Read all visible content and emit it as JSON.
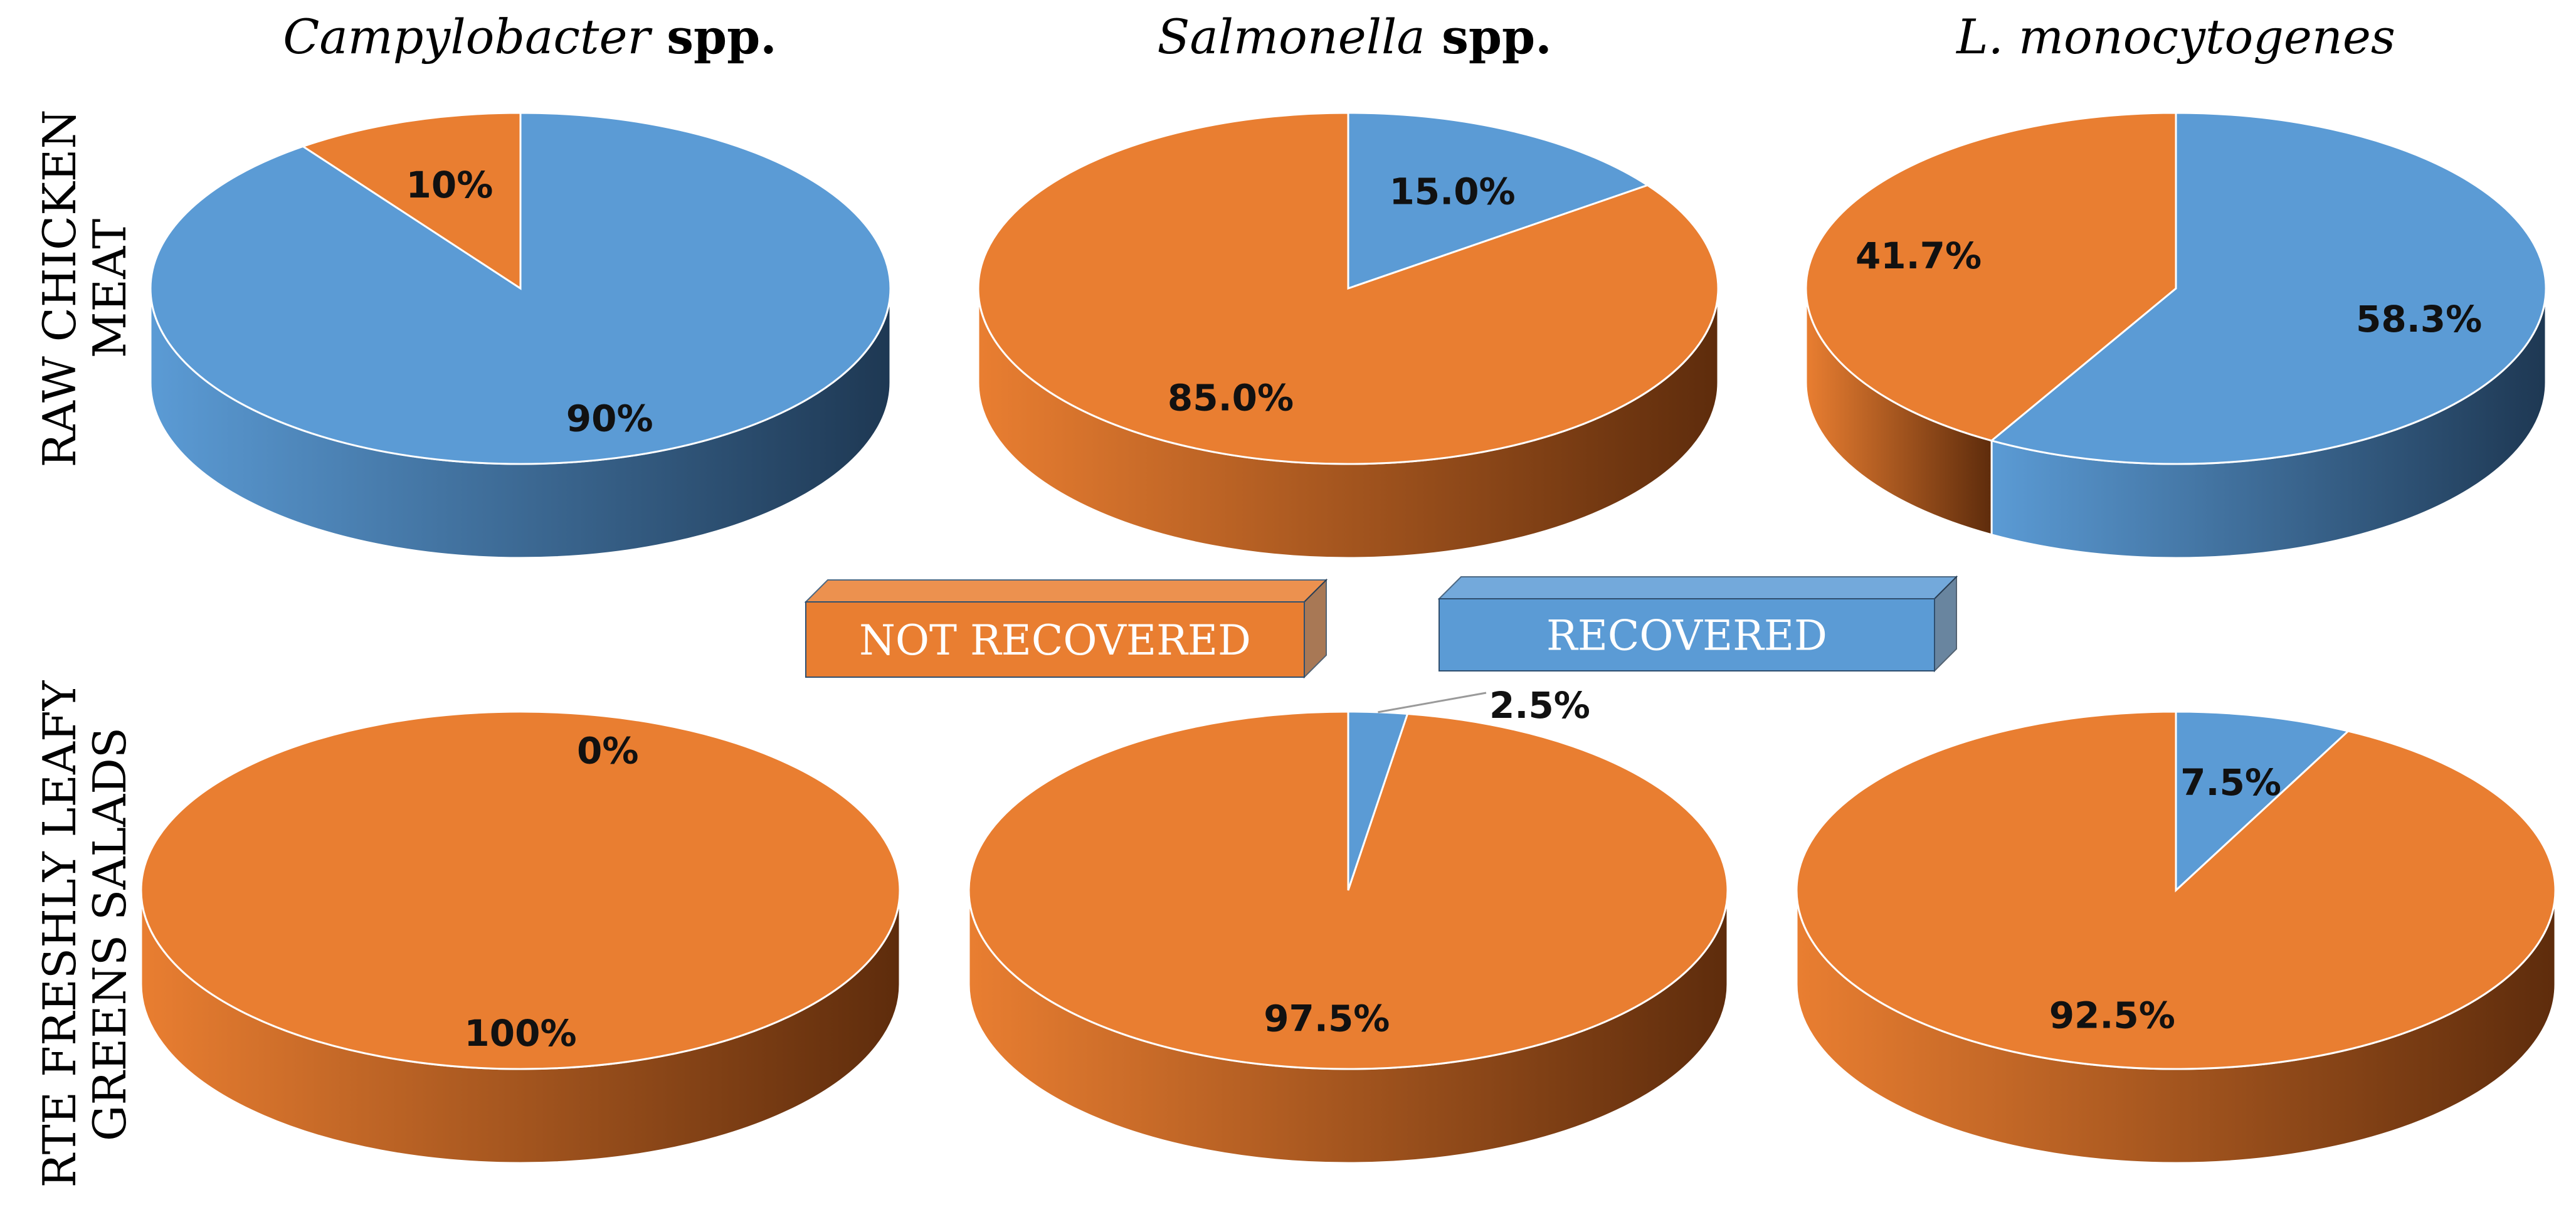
{
  "colors": {
    "not_recovered": "#E97E31",
    "recovered": "#5B9BD5",
    "not_recovered_side_dark": "#5E2C0C",
    "recovered_side_dark": "#1E3853"
  },
  "legend": {
    "not_recovered": "NOT RECOVERED",
    "recovered": "RECOVERED"
  },
  "chart_data": [
    {
      "type": "pie",
      "column_title": {
        "italic": "Campylobacter",
        "plain": " spp."
      },
      "row_label": [
        "RAW CHICKEN",
        "MEAT"
      ],
      "slices": [
        {
          "name": "NOT RECOVERED",
          "value": 10,
          "label": "10%"
        },
        {
          "name": "RECOVERED",
          "value": 90,
          "label": "90%"
        }
      ]
    },
    {
      "type": "pie",
      "column_title": {
        "italic": "Salmonella",
        "plain": " spp."
      },
      "row_label": [
        "RAW CHICKEN",
        "MEAT"
      ],
      "slices": [
        {
          "name": "NOT RECOVERED",
          "value": 85.0,
          "label": "85.0%"
        },
        {
          "name": "RECOVERED",
          "value": 15.0,
          "label": "15.0%"
        }
      ]
    },
    {
      "type": "pie",
      "column_title": {
        "italic": "L. monocytogenes",
        "plain": ""
      },
      "row_label": [
        "RAW CHICKEN",
        "MEAT"
      ],
      "slices": [
        {
          "name": "NOT RECOVERED",
          "value": 41.7,
          "label": "41.7%"
        },
        {
          "name": "RECOVERED",
          "value": 58.3,
          "label": "58.3%"
        }
      ]
    },
    {
      "type": "pie",
      "column_title": {
        "italic": "Campylobacter",
        "plain": " spp."
      },
      "row_label": [
        "RTE FRESHLY LEAFY",
        "GREENS SALADS"
      ],
      "slices": [
        {
          "name": "NOT RECOVERED",
          "value": 100,
          "label": "100%"
        },
        {
          "name": "RECOVERED",
          "value": 0,
          "label": "0%"
        }
      ]
    },
    {
      "type": "pie",
      "column_title": {
        "italic": "Salmonella",
        "plain": " spp."
      },
      "row_label": [
        "RTE FRESHLY LEAFY",
        "GREENS SALADS"
      ],
      "slices": [
        {
          "name": "NOT RECOVERED",
          "value": 97.5,
          "label": "97.5%"
        },
        {
          "name": "RECOVERED",
          "value": 2.5,
          "label": "2.5%"
        }
      ]
    },
    {
      "type": "pie",
      "column_title": {
        "italic": "L. monocytogenes",
        "plain": ""
      },
      "row_label": [
        "RTE FRESHLY LEAFY",
        "GREENS SALADS"
      ],
      "slices": [
        {
          "name": "NOT RECOVERED",
          "value": 92.5,
          "label": "92.5%"
        },
        {
          "name": "RECOVERED",
          "value": 7.5,
          "label": "7.5%"
        }
      ]
    }
  ]
}
